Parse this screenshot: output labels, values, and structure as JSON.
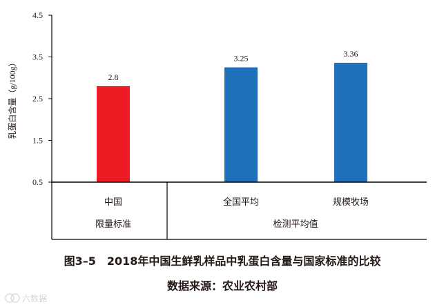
{
  "chart_data": {
    "type": "bar",
    "ylabel": "乳蛋白含量（g/100g）",
    "ylim": [
      0.5,
      4.5
    ],
    "yticks": [
      "0.5",
      "1.5",
      "2.5",
      "3.5",
      "4.5"
    ],
    "categories": [
      "中国",
      "全国平均",
      "规模牧场"
    ],
    "values": [
      2.8,
      3.25,
      3.36
    ],
    "value_labels": [
      "2.8",
      "3.25",
      "3.36"
    ],
    "bar_colors": [
      "#ED1C24",
      "#1F6FB9",
      "#1F6FB9"
    ],
    "groups": [
      "限量标准",
      "检测平均值"
    ],
    "grid": false
  },
  "caption": {
    "title": "图3–5　2018年中国生鲜乳样品中乳蛋白含量与国家标准的比较",
    "source": "数据来源：农业农村部"
  },
  "watermark": "六数据"
}
